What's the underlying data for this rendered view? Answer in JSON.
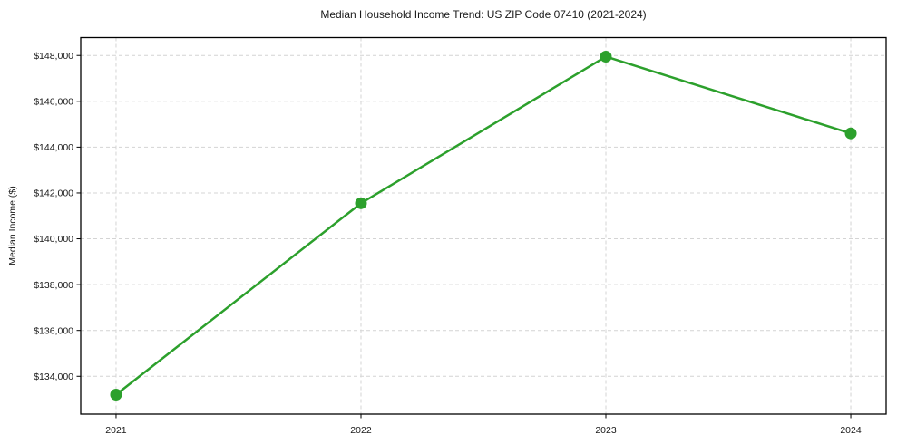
{
  "chart_data": {
    "type": "line",
    "title": "Median Household Income Trend: US ZIP Code 07410 (2021-2024)",
    "xlabel": "",
    "ylabel": "Median Income ($)",
    "x": [
      2021,
      2022,
      2023,
      2024
    ],
    "x_ticklabels": [
      "2021",
      "2022",
      "2023",
      "2024"
    ],
    "series": [
      {
        "name": "Median Household Income",
        "values": [
          133200,
          141550,
          147950,
          144600
        ]
      }
    ],
    "yticks": [
      134000,
      136000,
      138000,
      140000,
      142000,
      144000,
      146000,
      148000
    ],
    "ytick_labels": [
      "$134,000",
      "$136,000",
      "$138,000",
      "$140,000",
      "$142,000",
      "$144,000",
      "$146,000",
      "$148,000"
    ],
    "ylim": [
      132350,
      148780
    ],
    "xlim": [
      2020.8557,
      2024.1443
    ],
    "grid": true,
    "legend": "none",
    "colors": {
      "line": "#2ca02c",
      "marker": "#2ca02c",
      "gridline": "#d4d4d4",
      "axis": "#000000",
      "text": "#1a1a1a",
      "background": "#ffffff"
    }
  }
}
